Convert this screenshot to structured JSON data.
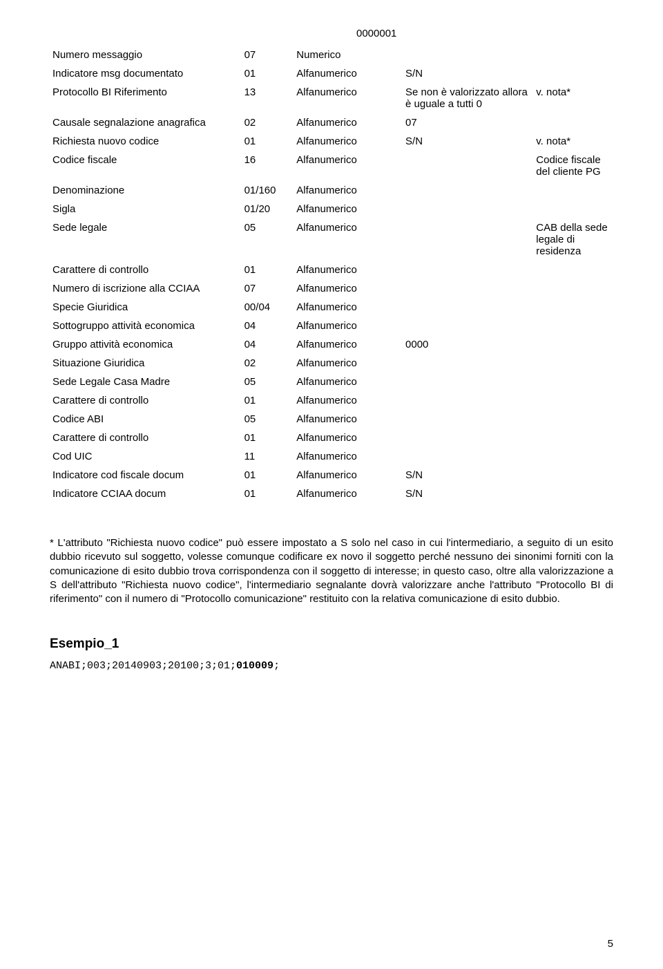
{
  "top_code": "0000001",
  "rows": [
    {
      "c1": "Numero messaggio",
      "c2": "07",
      "c3": "Numerico",
      "c4": "",
      "c5": ""
    },
    {
      "c1": "Indicatore msg documentato",
      "c2": "01",
      "c3": "Alfanumerico",
      "c4": "S/N",
      "c5": ""
    },
    {
      "c1": "Protocollo BI Riferimento",
      "c2": "13",
      "c3": "Alfanumerico",
      "c4": "Se non è valorizzato allora è uguale a tutti 0",
      "c5": "v. nota*"
    },
    {
      "c1": "Causale segnalazione anagrafica",
      "c2": "02",
      "c3": "Alfanumerico",
      "c4": "07",
      "c5": ""
    },
    {
      "c1": "Richiesta nuovo codice",
      "c2": "01",
      "c3": "Alfanumerico",
      "c4": "S/N",
      "c5": "v. nota*"
    },
    {
      "c1": "Codice fiscale",
      "c2": "16",
      "c3": "Alfanumerico",
      "c4": "",
      "c5": "Codice fiscale del cliente PG"
    },
    {
      "c1": "Denominazione",
      "c2": "01/160",
      "c3": "Alfanumerico",
      "c4": "",
      "c5": ""
    },
    {
      "c1": "Sigla",
      "c2": "01/20",
      "c3": "Alfanumerico",
      "c4": "",
      "c5": ""
    },
    {
      "c1": "Sede legale",
      "c2": "05",
      "c3": "Alfanumerico",
      "c4": "",
      "c5": "CAB della sede legale di residenza"
    },
    {
      "c1": "Carattere di controllo",
      "c2": "01",
      "c3": "Alfanumerico",
      "c4": "",
      "c5": ""
    },
    {
      "c1": "Numero di iscrizione alla CCIAA",
      "c2": "07",
      "c3": "Alfanumerico",
      "c4": "",
      "c5": ""
    },
    {
      "c1": "Specie Giuridica",
      "c2": "00/04",
      "c3": "Alfanumerico",
      "c4": "",
      "c5": ""
    },
    {
      "c1": "Sottogruppo attività economica",
      "c2": "04",
      "c3": "Alfanumerico",
      "c4": "",
      "c5": ""
    },
    {
      "c1": "Gruppo attività economica",
      "c2": "04",
      "c3": "Alfanumerico",
      "c4": "0000",
      "c5": ""
    },
    {
      "c1": "Situazione Giuridica",
      "c2": "02",
      "c3": "Alfanumerico",
      "c4": "",
      "c5": ""
    },
    {
      "c1": "Sede Legale Casa Madre",
      "c2": "05",
      "c3": "Alfanumerico",
      "c4": "",
      "c5": ""
    },
    {
      "c1": "Carattere di controllo",
      "c2": "01",
      "c3": "Alfanumerico",
      "c4": "",
      "c5": ""
    },
    {
      "c1": "Codice ABI",
      "c2": "05",
      "c3": "Alfanumerico",
      "c4": "",
      "c5": ""
    },
    {
      "c1": "Carattere di controllo",
      "c2": "01",
      "c3": "Alfanumerico",
      "c4": "",
      "c5": ""
    },
    {
      "c1": "Cod UIC",
      "c2": "11",
      "c3": "Alfanumerico",
      "c4": "",
      "c5": ""
    },
    {
      "c1": "Indicatore cod fiscale docum",
      "c2": "01",
      "c3": "Alfanumerico",
      "c4": "S/N",
      "c5": ""
    },
    {
      "c1": "Indicatore CCIAA docum",
      "c2": "01",
      "c3": "Alfanumerico",
      "c4": "S/N",
      "c5": ""
    }
  ],
  "paragraph": "* L'attributo \"Richiesta nuovo codice\" può essere impostato a S solo nel caso in cui l'intermediario, a seguito di un esito dubbio ricevuto sul soggetto, volesse comunque codificare ex novo il soggetto perché nessuno dei sinonimi forniti con la comunicazione di esito dubbio trova corrispondenza con il soggetto di interesse; in questo caso, oltre alla valorizzazione a S dell'attributo \"Richiesta nuovo codice\", l'intermediario segnalante dovrà valorizzare anche l'attributo \"Protocollo BI di riferimento\" con il numero di \"Protocollo comunicazione\" restituito con la relativa comunicazione di esito dubbio.",
  "heading": "Esempio_1",
  "code_plain": "ANABI;003;20140903;20100;3;01;",
  "code_bold": "010009",
  "code_tail": ";",
  "page_number": "5"
}
